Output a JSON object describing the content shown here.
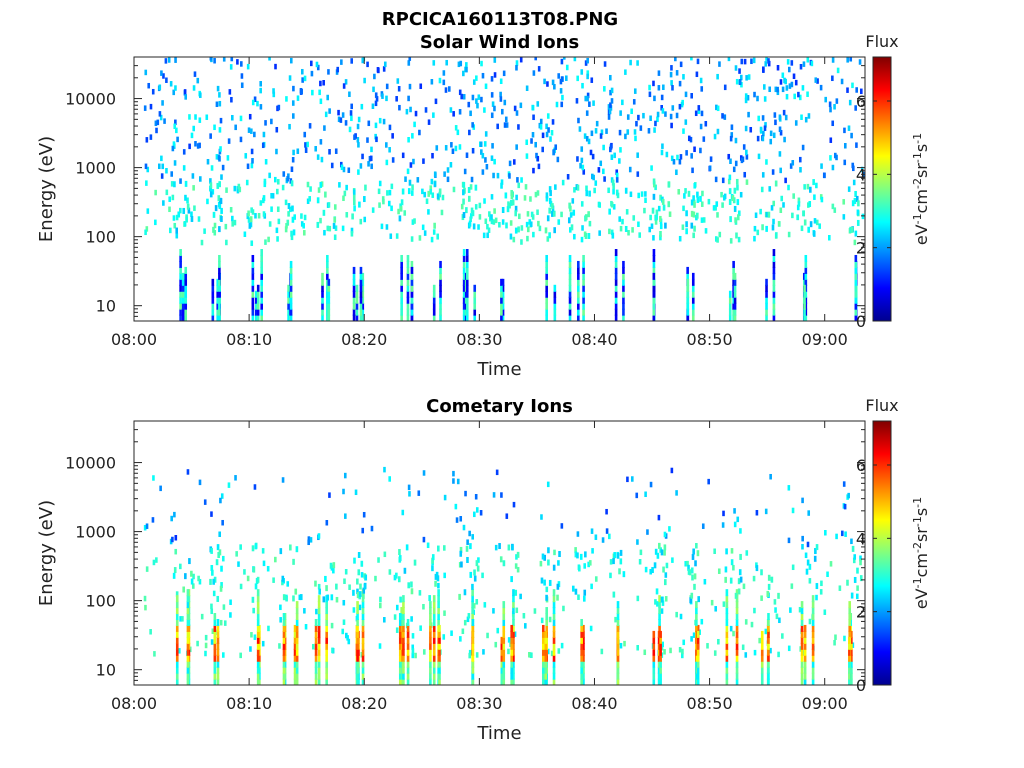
{
  "figure_title": "RPCICA160113T08.PNG",
  "colorbar_units_text": "eV",
  "colorbar_units_sup1": "-1",
  "colorbar_units_cm": "cm",
  "colorbar_units_sup2": "-2",
  "colorbar_units_sr": "sr",
  "colorbar_units_sup3": "-1",
  "colorbar_units_s": "s",
  "colorbar_units_sup4": "-1",
  "colors": {
    "colormap": [
      "#00008f",
      "#0000ff",
      "#0080ff",
      "#00ffff",
      "#80ff80",
      "#ffff00",
      "#ff8000",
      "#ff0000",
      "#800000"
    ]
  },
  "chart_data": [
    {
      "type": "heatmap",
      "title": "Solar Wind Ions",
      "xlabel": "Time",
      "ylabel": "Energy (eV)",
      "x_ticks": [
        "08:00",
        "08:10",
        "08:20",
        "08:30",
        "08:40",
        "08:50",
        "09:00"
      ],
      "y_ticks": [
        "10",
        "100",
        "1000",
        "10000"
      ],
      "yscale": "log",
      "ylim": [
        6,
        40000
      ],
      "xlim_minutes": [
        0,
        63.5
      ],
      "colorbar": {
        "label": "Flux",
        "ticks": [
          "0",
          "2",
          "4",
          "6"
        ],
        "range": [
          0,
          7.2
        ]
      },
      "burst_times_minutes": [
        4,
        7,
        10.5,
        13.5,
        16.5,
        19.5,
        23.5,
        26,
        29,
        32.5,
        36,
        38.5,
        42,
        45.5,
        48.5,
        52,
        55,
        58.5,
        62.5
      ],
      "dominant_flux_low_energy": 3,
      "dominant_flux_high_energy": 2,
      "max_flux": 3.5
    },
    {
      "type": "heatmap",
      "title": "Cometary Ions",
      "xlabel": "Time",
      "ylabel": "Energy (eV)",
      "x_ticks": [
        "08:00",
        "08:10",
        "08:20",
        "08:30",
        "08:40",
        "08:50",
        "09:00"
      ],
      "y_ticks": [
        "10",
        "100",
        "1000",
        "10000"
      ],
      "yscale": "log",
      "ylim": [
        6,
        40000
      ],
      "xlim_minutes": [
        0,
        63.5
      ],
      "colorbar": {
        "label": "Flux",
        "ticks": [
          "0",
          "2",
          "4",
          "6"
        ],
        "range": [
          0,
          7.2
        ]
      },
      "burst_times_minutes": [
        4,
        7,
        10.5,
        13.5,
        16.5,
        19.5,
        23.5,
        26,
        29,
        32.5,
        36,
        38.5,
        42,
        45.5,
        48.5,
        52,
        55,
        58.5,
        62.5
      ],
      "dominant_flux_low_energy": 5.5,
      "dominant_flux_high_energy": 2,
      "max_flux": 6.3
    }
  ]
}
